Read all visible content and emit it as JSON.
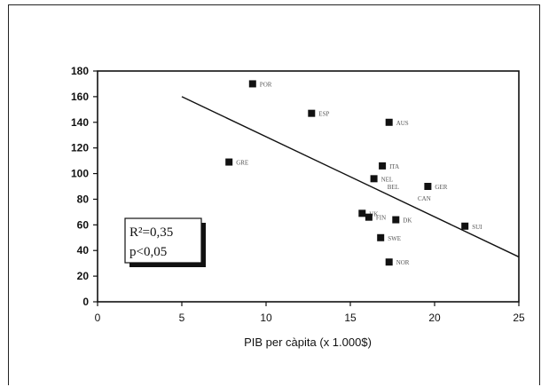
{
  "chart_data": {
    "type": "scatter",
    "xlabel": "PIB per càpita (x 1.000$)",
    "ylabel": "",
    "xlim": [
      0,
      25
    ],
    "ylim": [
      0,
      180
    ],
    "x_ticks": [
      0,
      5,
      10,
      15,
      20,
      25
    ],
    "y_ticks": [
      0,
      20,
      40,
      60,
      80,
      100,
      120,
      140,
      160,
      180
    ],
    "grid": false,
    "points": [
      {
        "label": "POR",
        "x": 9.2,
        "y": 170
      },
      {
        "label": "ESP",
        "x": 12.7,
        "y": 147
      },
      {
        "label": "AUS",
        "x": 17.3,
        "y": 140
      },
      {
        "label": "GRE",
        "x": 7.8,
        "y": 109
      },
      {
        "label": "ITA",
        "x": 16.9,
        "y": 106
      },
      {
        "label": "NEL",
        "x": 16.4,
        "y": 96
      },
      {
        "label": "GER",
        "x": 19.6,
        "y": 90
      },
      {
        "label": "UK",
        "x": 15.7,
        "y": 69
      },
      {
        "label": "FIN",
        "x": 16.1,
        "y": 66
      },
      {
        "label": "DK",
        "x": 17.7,
        "y": 64
      },
      {
        "label": "SUI",
        "x": 21.8,
        "y": 59
      },
      {
        "label": "SWE",
        "x": 16.8,
        "y": 50
      },
      {
        "label": "NOR",
        "x": 17.3,
        "y": 31
      }
    ],
    "extra_labels": [
      {
        "label": "BEL",
        "x": 17.2,
        "y": 88
      },
      {
        "label": "CAN",
        "x": 19.0,
        "y": 79
      }
    ],
    "trendline": {
      "x": [
        5,
        25
      ],
      "y": [
        160,
        35
      ]
    },
    "annotation": {
      "line1": "R²=0,35",
      "line2": "p<0,05"
    }
  }
}
